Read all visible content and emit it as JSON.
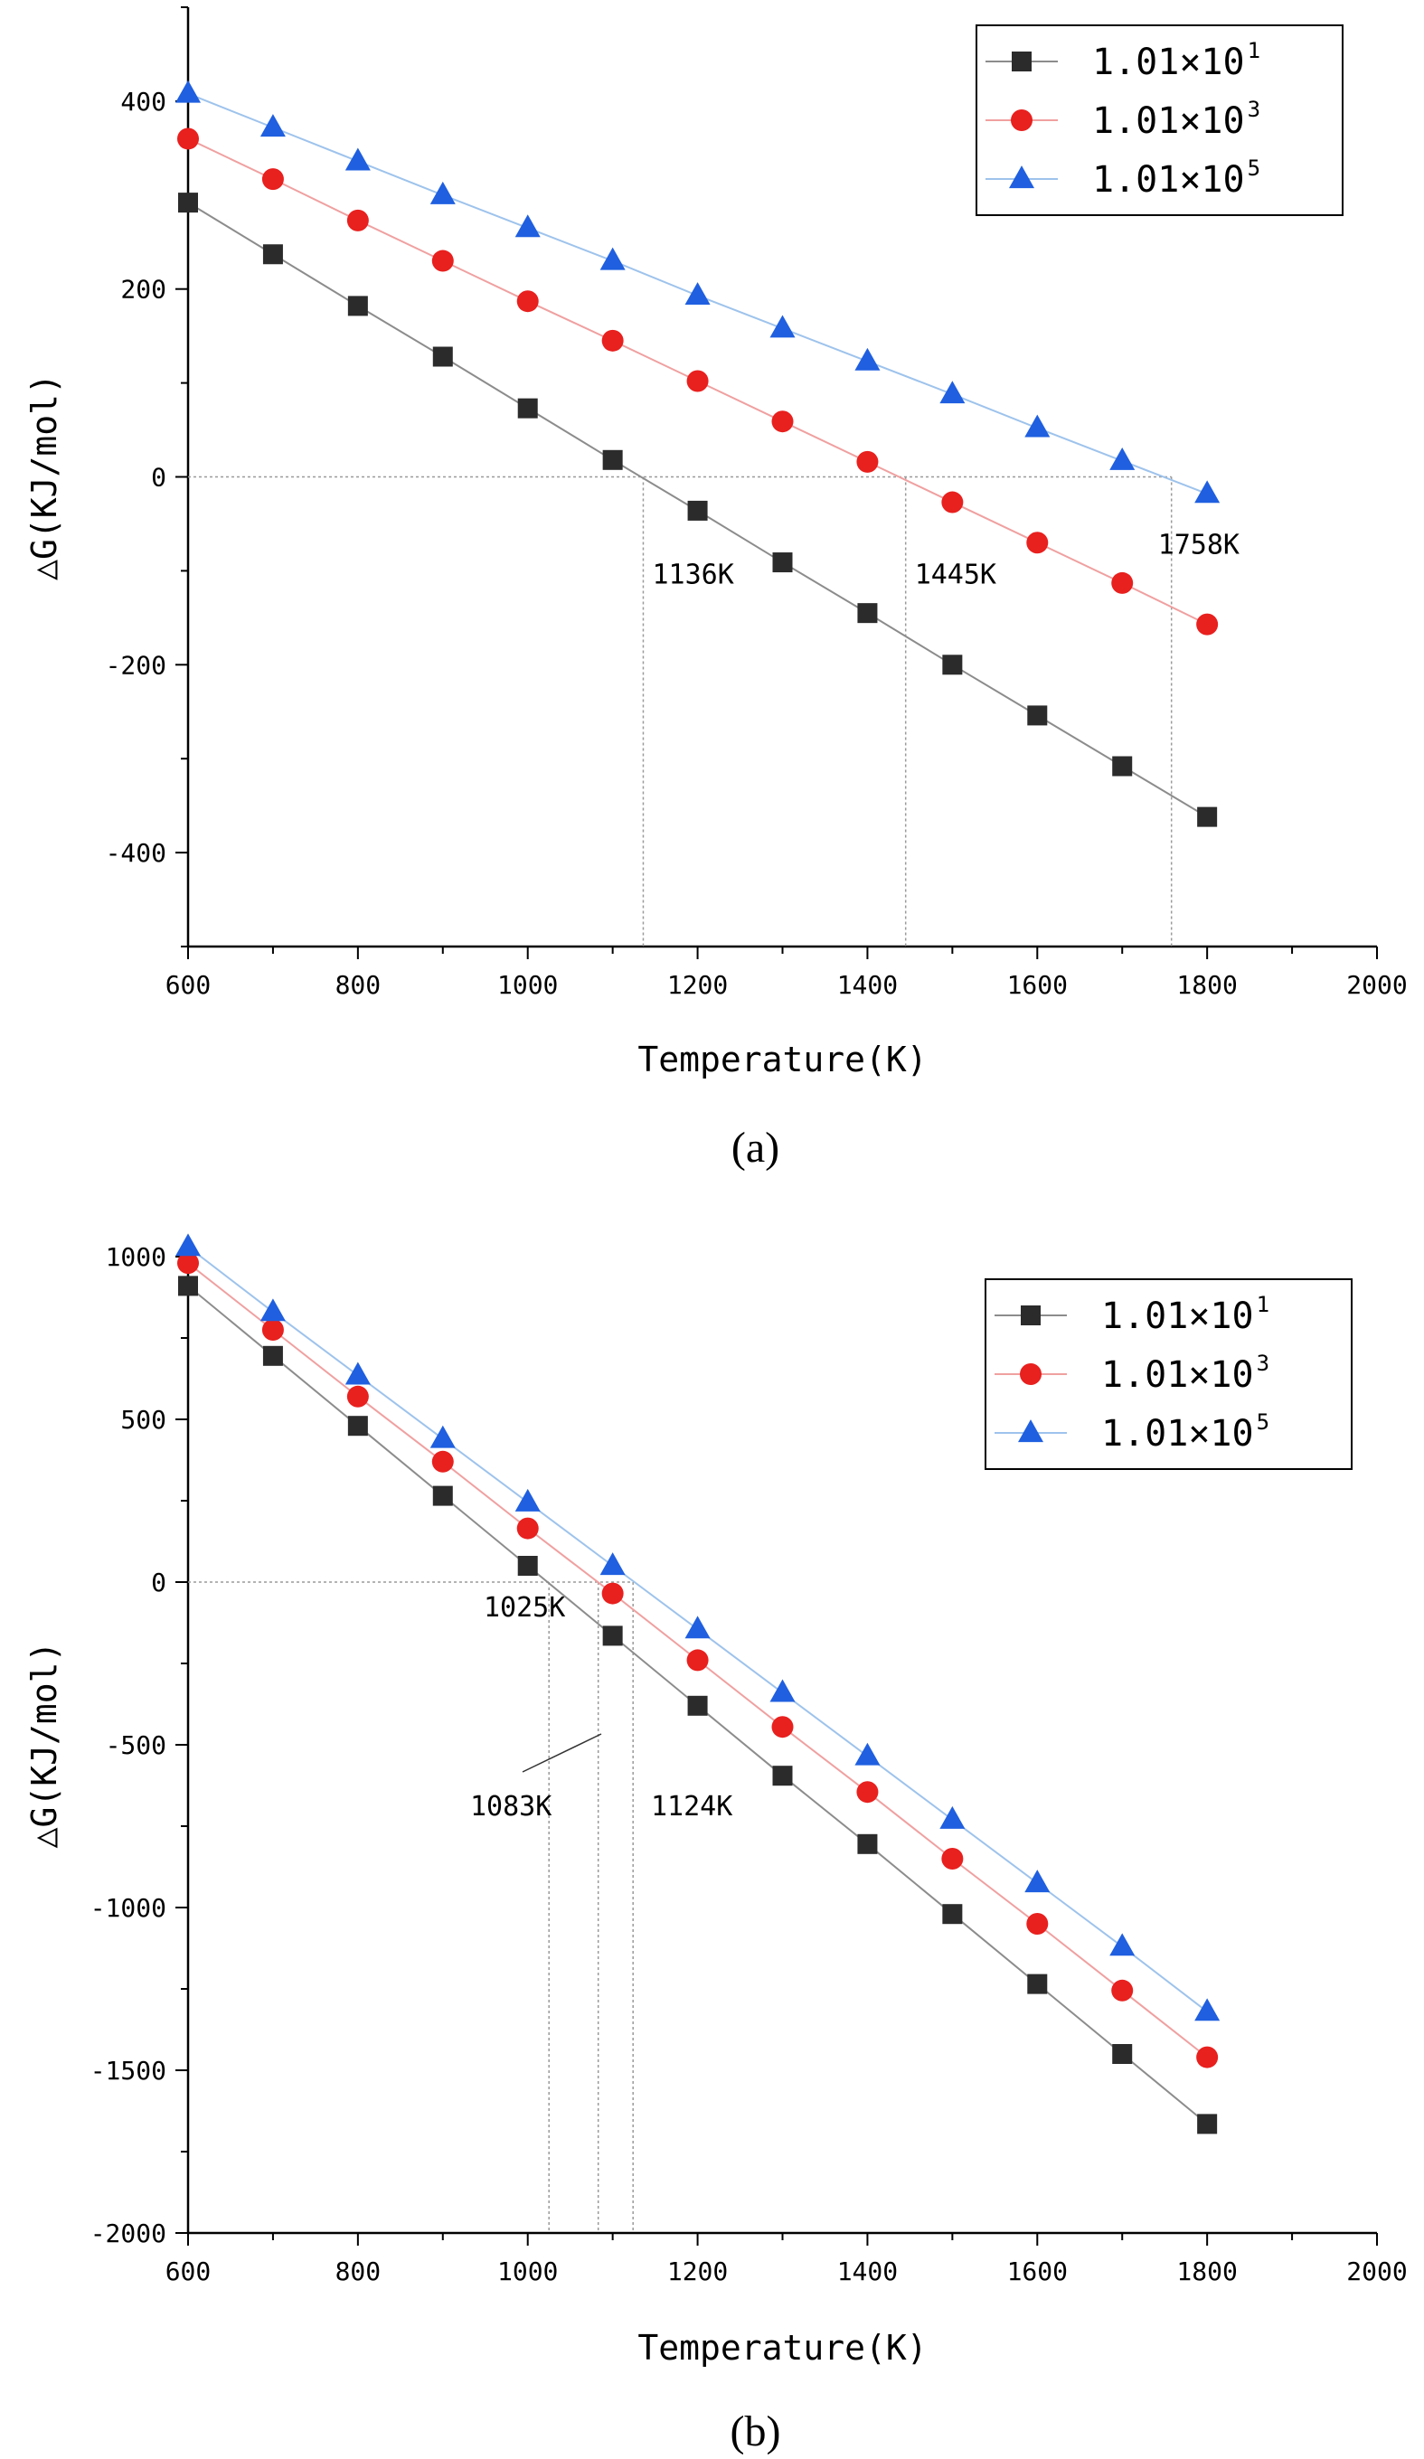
{
  "chart_data": [
    {
      "type": "line",
      "panel_label": "(a)",
      "xlabel": "Temperature(K)",
      "ylabel": "△G(KJ/mol)",
      "xlim": [
        600,
        2000
      ],
      "ylim": [
        -500,
        500
      ],
      "xticks": [
        600,
        800,
        1000,
        1200,
        1400,
        1600,
        1800,
        2000
      ],
      "yticks": [
        -400,
        -200,
        0,
        200,
        400
      ],
      "x": [
        600,
        700,
        800,
        900,
        1000,
        1100,
        1200,
        1300,
        1400,
        1500,
        1600,
        1700,
        1800
      ],
      "series": [
        {
          "name": "1.01×10",
          "exp": "1",
          "marker": "square",
          "color": "#2b2b2b",
          "line_color": "#8c8c8c",
          "values": [
            292,
            237,
            182,
            128,
            73,
            18,
            -36,
            -91,
            -145,
            -200,
            -254,
            -308,
            -362
          ]
        },
        {
          "name": "1.01×10",
          "exp": "3",
          "marker": "circle",
          "color": "#e8201e",
          "line_color": "#f0a0a0",
          "values": [
            360,
            317,
            273,
            230,
            187,
            145,
            102,
            59,
            16,
            -27,
            -70,
            -113,
            -157
          ]
        },
        {
          "name": "1.01×10",
          "exp": "5",
          "marker": "triangle",
          "color": "#1f5fe0",
          "line_color": "#9ec3ec",
          "values": [
            408,
            372,
            336,
            300,
            265,
            230,
            193,
            158,
            123,
            88,
            52,
            17,
            -18
          ]
        }
      ],
      "zero_crossings": [
        {
          "x": 1136,
          "label": "1136K"
        },
        {
          "x": 1445,
          "label": "1445K"
        },
        {
          "x": 1758,
          "label": "1758K"
        }
      ],
      "legend_position": "top-right",
      "grid": false
    },
    {
      "type": "line",
      "panel_label": "(b)",
      "xlabel": "Temperature(K)",
      "ylabel": "△G(KJ/mol)",
      "xlim": [
        600,
        2000
      ],
      "ylim": [
        -2000,
        1000
      ],
      "xticks": [
        600,
        800,
        1000,
        1200,
        1400,
        1600,
        1800,
        2000
      ],
      "yticks": [
        -2000,
        -1500,
        -1000,
        -500,
        0,
        500,
        1000
      ],
      "x": [
        600,
        700,
        800,
        900,
        1000,
        1100,
        1200,
        1300,
        1400,
        1500,
        1600,
        1700,
        1800
      ],
      "series": [
        {
          "name": "1.01×10",
          "exp": "1",
          "marker": "square",
          "color": "#2b2b2b",
          "line_color": "#8c8c8c",
          "values": [
            910,
            695,
            480,
            265,
            50,
            -165,
            -380,
            -595,
            -805,
            -1020,
            -1235,
            -1450,
            -1665
          ]
        },
        {
          "name": "1.01×10",
          "exp": "3",
          "marker": "circle",
          "color": "#e8201e",
          "line_color": "#f0a0a0",
          "values": [
            980,
            775,
            570,
            370,
            165,
            -35,
            -240,
            -445,
            -645,
            -850,
            -1050,
            -1255,
            -1460
          ]
        },
        {
          "name": "1.01×10",
          "exp": "5",
          "marker": "triangle",
          "color": "#1f5fe0",
          "line_color": "#9ec3ec",
          "values": [
            1030,
            830,
            635,
            440,
            245,
            50,
            -145,
            -340,
            -535,
            -730,
            -925,
            -1120,
            -1320
          ]
        }
      ],
      "zero_crossings": [
        {
          "x": 1025,
          "label": "1025K"
        },
        {
          "x": 1083,
          "label": "1083K"
        },
        {
          "x": 1124,
          "label": "1124K"
        }
      ],
      "legend_position": "top-right",
      "grid": false
    }
  ]
}
